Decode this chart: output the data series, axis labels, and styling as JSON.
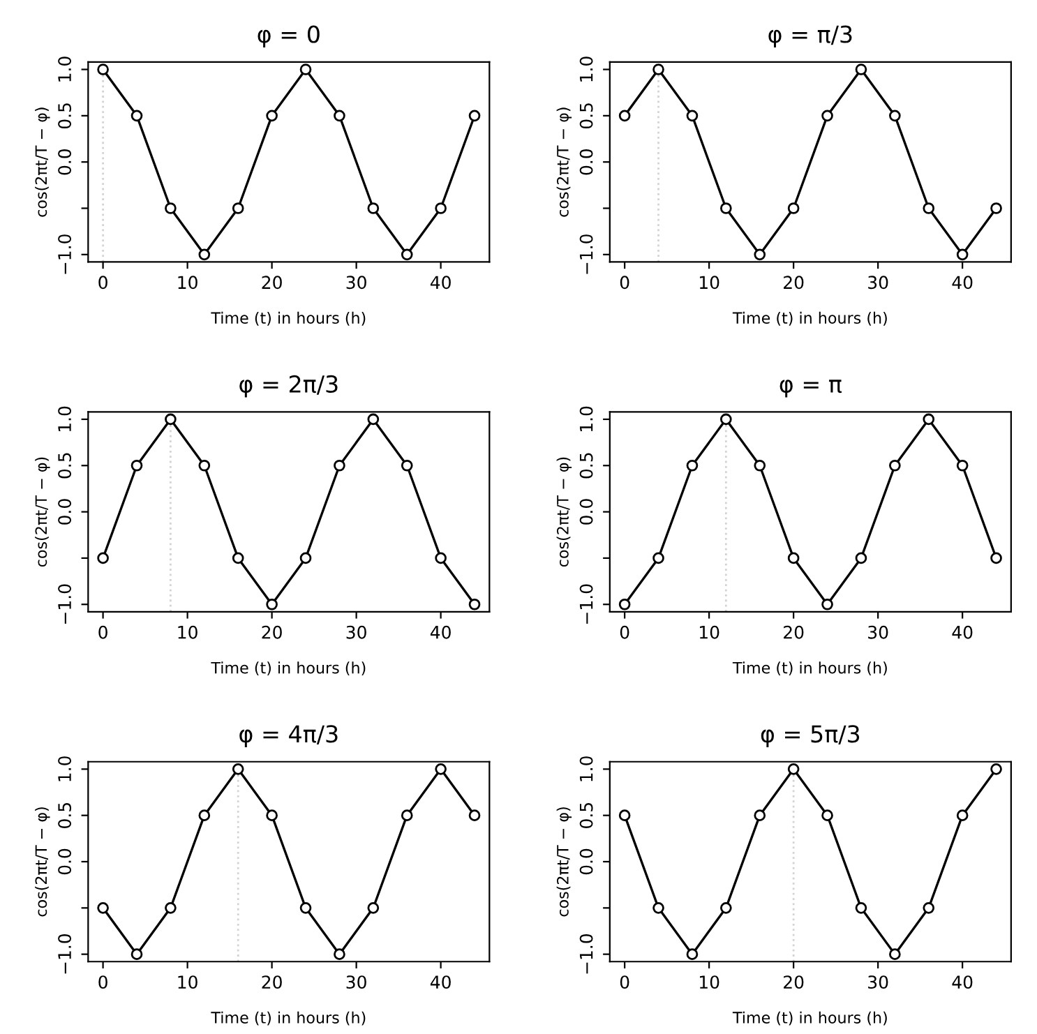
{
  "chart_data": [
    {
      "type": "line",
      "title": "φ = 0",
      "xlabel": "Time (t) in hours (h)",
      "ylabel": "cos(2πt/T − φ)",
      "x": [
        0,
        4,
        8,
        12,
        16,
        20,
        24,
        28,
        32,
        36,
        40,
        44
      ],
      "series": [
        {
          "color": "#000000",
          "values": [
            1,
            0.5,
            -0.5,
            -1,
            -0.5,
            0.5,
            1,
            0.5,
            -0.5,
            -1,
            -0.5,
            0.5
          ]
        }
      ],
      "marker": "circle",
      "line_style": "solid",
      "xlim": [
        -1.76,
        45.76
      ],
      "ylim": [
        -1.08,
        1.08
      ],
      "xticks": [
        0,
        10,
        20,
        30,
        40
      ],
      "yticks": [
        {
          "value": -1,
          "label": "−1.0"
        },
        {
          "value": -0.5,
          "label": null
        },
        {
          "value": 0,
          "label": "0.0"
        },
        {
          "value": 0.5,
          "label": "0.5"
        },
        {
          "value": 1,
          "label": "1.0"
        }
      ],
      "ref_lines": [
        {
          "axis": "x",
          "value": 0,
          "color": "#d3d3d3",
          "line_style": "dotted"
        }
      ],
      "grid": false,
      "legend": false
    },
    {
      "type": "line",
      "title": "φ = π/3",
      "xlabel": "Time (t) in hours (h)",
      "ylabel": "cos(2πt/T − φ)",
      "x": [
        0,
        4,
        8,
        12,
        16,
        20,
        24,
        28,
        32,
        36,
        40,
        44
      ],
      "series": [
        {
          "color": "#000000",
          "values": [
            0.5,
            1,
            0.5,
            -0.5,
            -1,
            -0.5,
            0.5,
            1,
            0.5,
            -0.5,
            -1,
            -0.5
          ]
        }
      ],
      "marker": "circle",
      "line_style": "solid",
      "xlim": [
        -1.76,
        45.76
      ],
      "ylim": [
        -1.08,
        1.08
      ],
      "xticks": [
        0,
        10,
        20,
        30,
        40
      ],
      "yticks": [
        {
          "value": -1,
          "label": "−1.0"
        },
        {
          "value": -0.5,
          "label": null
        },
        {
          "value": 0,
          "label": "0.0"
        },
        {
          "value": 0.5,
          "label": "0.5"
        },
        {
          "value": 1,
          "label": "1.0"
        }
      ],
      "ref_lines": [
        {
          "axis": "x",
          "value": 4,
          "color": "#d3d3d3",
          "line_style": "dotted"
        }
      ],
      "grid": false,
      "legend": false
    },
    {
      "type": "line",
      "title": "φ = 2π/3",
      "xlabel": "Time (t) in hours (h)",
      "ylabel": "cos(2πt/T − φ)",
      "x": [
        0,
        4,
        8,
        12,
        16,
        20,
        24,
        28,
        32,
        36,
        40,
        44
      ],
      "series": [
        {
          "color": "#000000",
          "values": [
            -0.5,
            0.5,
            1,
            0.5,
            -0.5,
            -1,
            -0.5,
            0.5,
            1,
            0.5,
            -0.5,
            -1
          ]
        }
      ],
      "marker": "circle",
      "line_style": "solid",
      "xlim": [
        -1.76,
        45.76
      ],
      "ylim": [
        -1.08,
        1.08
      ],
      "xticks": [
        0,
        10,
        20,
        30,
        40
      ],
      "yticks": [
        {
          "value": -1,
          "label": "−1.0"
        },
        {
          "value": -0.5,
          "label": null
        },
        {
          "value": 0,
          "label": "0.0"
        },
        {
          "value": 0.5,
          "label": "0.5"
        },
        {
          "value": 1,
          "label": "1.0"
        }
      ],
      "ref_lines": [
        {
          "axis": "x",
          "value": 8,
          "color": "#d3d3d3",
          "line_style": "dotted"
        }
      ],
      "grid": false,
      "legend": false
    },
    {
      "type": "line",
      "title": "φ = π",
      "xlabel": "Time (t) in hours (h)",
      "ylabel": "cos(2πt/T − φ)",
      "x": [
        0,
        4,
        8,
        12,
        16,
        20,
        24,
        28,
        32,
        36,
        40,
        44
      ],
      "series": [
        {
          "color": "#000000",
          "values": [
            -1,
            -0.5,
            0.5,
            1,
            0.5,
            -0.5,
            -1,
            -0.5,
            0.5,
            1,
            0.5,
            -0.5
          ]
        }
      ],
      "marker": "circle",
      "line_style": "solid",
      "xlim": [
        -1.76,
        45.76
      ],
      "ylim": [
        -1.08,
        1.08
      ],
      "xticks": [
        0,
        10,
        20,
        30,
        40
      ],
      "yticks": [
        {
          "value": -1,
          "label": "−1.0"
        },
        {
          "value": -0.5,
          "label": null
        },
        {
          "value": 0,
          "label": "0.0"
        },
        {
          "value": 0.5,
          "label": "0.5"
        },
        {
          "value": 1,
          "label": "1.0"
        }
      ],
      "ref_lines": [
        {
          "axis": "x",
          "value": 12,
          "color": "#d3d3d3",
          "line_style": "dotted"
        }
      ],
      "grid": false,
      "legend": false
    },
    {
      "type": "line",
      "title": "φ = 4π/3",
      "xlabel": "Time (t) in hours (h)",
      "ylabel": "cos(2πt/T − φ)",
      "x": [
        0,
        4,
        8,
        12,
        16,
        20,
        24,
        28,
        32,
        36,
        40,
        44
      ],
      "series": [
        {
          "color": "#000000",
          "values": [
            -0.5,
            -1,
            -0.5,
            0.5,
            1,
            0.5,
            -0.5,
            -1,
            -0.5,
            0.5,
            1,
            0.5
          ]
        }
      ],
      "marker": "circle",
      "line_style": "solid",
      "xlim": [
        -1.76,
        45.76
      ],
      "ylim": [
        -1.08,
        1.08
      ],
      "xticks": [
        0,
        10,
        20,
        30,
        40
      ],
      "yticks": [
        {
          "value": -1,
          "label": "−1.0"
        },
        {
          "value": -0.5,
          "label": null
        },
        {
          "value": 0,
          "label": "0.0"
        },
        {
          "value": 0.5,
          "label": "0.5"
        },
        {
          "value": 1,
          "label": "1.0"
        }
      ],
      "ref_lines": [
        {
          "axis": "x",
          "value": 16,
          "color": "#d3d3d3",
          "line_style": "dotted"
        }
      ],
      "grid": false,
      "legend": false
    },
    {
      "type": "line",
      "title": "φ = 5π/3",
      "xlabel": "Time (t) in hours (h)",
      "ylabel": "cos(2πt/T − φ)",
      "x": [
        0,
        4,
        8,
        12,
        16,
        20,
        24,
        28,
        32,
        36,
        40,
        44
      ],
      "series": [
        {
          "color": "#000000",
          "values": [
            0.5,
            -0.5,
            -1,
            -0.5,
            0.5,
            1,
            0.5,
            -0.5,
            -1,
            -0.5,
            0.5,
            1
          ]
        }
      ],
      "marker": "circle",
      "line_style": "solid",
      "xlim": [
        -1.76,
        45.76
      ],
      "ylim": [
        -1.08,
        1.08
      ],
      "xticks": [
        0,
        10,
        20,
        30,
        40
      ],
      "yticks": [
        {
          "value": -1,
          "label": "−1.0"
        },
        {
          "value": -0.5,
          "label": null
        },
        {
          "value": 0,
          "label": "0.0"
        },
        {
          "value": 0.5,
          "label": "0.5"
        },
        {
          "value": 1,
          "label": "1.0"
        }
      ],
      "ref_lines": [
        {
          "axis": "x",
          "value": 20,
          "color": "#d3d3d3",
          "line_style": "dotted"
        }
      ],
      "grid": false,
      "legend": false
    }
  ]
}
